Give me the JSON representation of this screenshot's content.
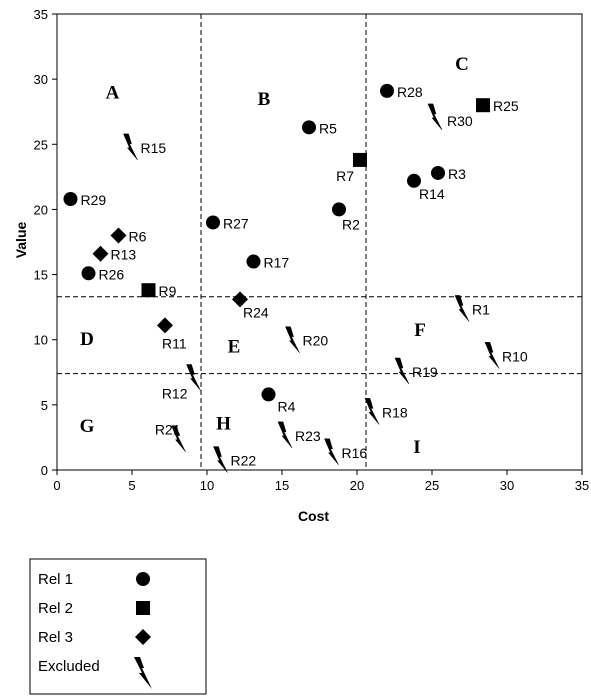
{
  "chart_data": {
    "type": "scatter",
    "xlabel": "Cost",
    "ylabel": "Value",
    "xlim": [
      0,
      35
    ],
    "ylim": [
      0,
      35
    ],
    "xticks": [
      0,
      5,
      10,
      15,
      20,
      25,
      30,
      35
    ],
    "yticks": [
      0,
      5,
      10,
      15,
      20,
      25,
      30,
      35
    ],
    "grid": false,
    "dividers": {
      "vertical": [
        9.6,
        20.6
      ],
      "horizontal": [
        7.4,
        13.3
      ]
    },
    "regions": [
      {
        "label": "A",
        "x": 3.7,
        "y": 28.5
      },
      {
        "label": "B",
        "x": 13.8,
        "y": 28.0
      },
      {
        "label": "C",
        "x": 27.0,
        "y": 30.7
      },
      {
        "label": "D",
        "x": 2.0,
        "y": 9.6
      },
      {
        "label": "E",
        "x": 11.8,
        "y": 9.0
      },
      {
        "label": "F",
        "x": 24.2,
        "y": 10.3
      },
      {
        "label": "G",
        "x": 2.0,
        "y": 2.9
      },
      {
        "label": "H",
        "x": 11.1,
        "y": 3.1
      },
      {
        "label": "I",
        "x": 24.0,
        "y": 1.3
      }
    ],
    "series": [
      {
        "name": "Rel 1",
        "marker": "circle",
        "points": [
          {
            "label": "R28",
            "x": 22.0,
            "y": 29.1
          },
          {
            "label": "R5",
            "x": 16.8,
            "y": 26.3
          },
          {
            "label": "R3",
            "x": 25.4,
            "y": 22.8
          },
          {
            "label": "R14",
            "x": 23.8,
            "y": 22.2
          },
          {
            "label": "R29",
            "x": 0.9,
            "y": 20.8
          },
          {
            "label": "R2",
            "x": 18.8,
            "y": 20.0
          },
          {
            "label": "R27",
            "x": 10.4,
            "y": 19.0
          },
          {
            "label": "R17",
            "x": 13.1,
            "y": 16.0
          },
          {
            "label": "R26",
            "x": 2.1,
            "y": 15.1
          },
          {
            "label": "R4",
            "x": 14.1,
            "y": 5.8
          }
        ]
      },
      {
        "name": "Rel 2",
        "marker": "square",
        "points": [
          {
            "label": "R25",
            "x": 28.4,
            "y": 28.0
          },
          {
            "label": "R7",
            "x": 20.2,
            "y": 23.8
          },
          {
            "label": "R9",
            "x": 6.1,
            "y": 13.8
          }
        ]
      },
      {
        "name": "Rel 3",
        "marker": "diamond",
        "points": [
          {
            "label": "R6",
            "x": 4.1,
            "y": 18.0
          },
          {
            "label": "R13",
            "x": 2.9,
            "y": 16.6
          },
          {
            "label": "R24",
            "x": 12.2,
            "y": 13.1
          },
          {
            "label": "R11",
            "x": 7.2,
            "y": 11.1
          }
        ]
      },
      {
        "name": "Excluded",
        "marker": "bolt",
        "points": [
          {
            "label": "R30",
            "x": 25.2,
            "y": 27.1
          },
          {
            "label": "R15",
            "x": 4.9,
            "y": 24.8
          },
          {
            "label": "R1",
            "x": 27.0,
            "y": 12.4
          },
          {
            "label": "R20",
            "x": 15.7,
            "y": 10.0
          },
          {
            "label": "R10",
            "x": 29.0,
            "y": 8.8
          },
          {
            "label": "R19",
            "x": 23.0,
            "y": 7.6
          },
          {
            "label": "R12",
            "x": 9.1,
            "y": 7.1
          },
          {
            "label": "R18",
            "x": 21.0,
            "y": 4.5
          },
          {
            "label": "R21",
            "x": 8.1,
            "y": 2.4
          },
          {
            "label": "R23",
            "x": 15.2,
            "y": 2.7
          },
          {
            "label": "R16",
            "x": 18.3,
            "y": 1.4
          },
          {
            "label": "R22",
            "x": 10.9,
            "y": 0.8
          }
        ]
      }
    ],
    "legend": {
      "position": "bottom-left",
      "entries": [
        {
          "label": "Rel 1",
          "marker": "circle"
        },
        {
          "label": "Rel 2",
          "marker": "square"
        },
        {
          "label": "Rel 3",
          "marker": "diamond"
        },
        {
          "label": "Excluded",
          "marker": "bolt"
        }
      ]
    }
  }
}
